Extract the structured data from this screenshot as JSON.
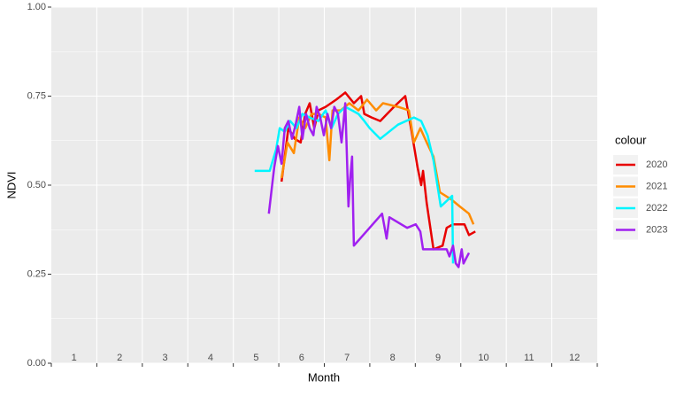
{
  "chart_data": {
    "type": "line",
    "x_label": "Month",
    "y_label": "NDVI",
    "legend_title": "colour",
    "xlim": [
      0.5,
      12.5
    ],
    "xticks": [
      1,
      2,
      3,
      4,
      5,
      6,
      7,
      8,
      9,
      10,
      11,
      12
    ],
    "ylim": [
      0,
      1
    ],
    "yticks": [
      {
        "value": 0,
        "label": "0.00"
      },
      {
        "value": 0.25,
        "label": "0.25"
      },
      {
        "value": 0.5,
        "label": "0.50"
      },
      {
        "value": 0.75,
        "label": "0.75"
      },
      {
        "value": 1,
        "label": "1.00"
      }
    ],
    "grid": true,
    "legend_position": "right",
    "series": [
      {
        "name": "2020",
        "color": "#e80000",
        "x": [
          5.56,
          5.63,
          5.71,
          5.85,
          5.98,
          6.08,
          6.18,
          6.28,
          6.37,
          6.53,
          6.76,
          6.96,
          7.15,
          7.31,
          7.38,
          7.54,
          7.73,
          8.03,
          8.28,
          8.42,
          8.55,
          8.63,
          8.67,
          8.75,
          8.9,
          9.1,
          9.19,
          9.33,
          9.58,
          9.68,
          9.82
        ],
        "values": [
          0.51,
          0.58,
          0.66,
          0.63,
          0.62,
          0.7,
          0.73,
          0.66,
          0.71,
          0.72,
          0.74,
          0.76,
          0.73,
          0.75,
          0.7,
          0.69,
          0.68,
          0.72,
          0.75,
          0.65,
          0.55,
          0.5,
          0.54,
          0.45,
          0.32,
          0.33,
          0.38,
          0.39,
          0.39,
          0.36,
          0.37
        ]
      },
      {
        "name": "2021",
        "color": "#ff8c00",
        "x": [
          5.56,
          5.69,
          5.83,
          5.95,
          6.08,
          6.22,
          6.37,
          6.53,
          6.61,
          6.68,
          6.86,
          7.05,
          7.25,
          7.44,
          7.64,
          7.79,
          8.12,
          8.36,
          8.47,
          8.61,
          8.75,
          8.9,
          9.04,
          9.29,
          9.48,
          9.68,
          9.78
        ],
        "values": [
          0.52,
          0.62,
          0.59,
          0.69,
          0.66,
          0.7,
          0.7,
          0.69,
          0.57,
          0.71,
          0.71,
          0.73,
          0.71,
          0.74,
          0.71,
          0.73,
          0.72,
          0.71,
          0.62,
          0.66,
          0.62,
          0.58,
          0.48,
          0.46,
          0.44,
          0.42,
          0.39
        ]
      },
      {
        "name": "2022",
        "color": "#00f5ff",
        "x": [
          4.97,
          5.3,
          5.44,
          5.52,
          5.63,
          5.75,
          5.89,
          6.02,
          6.18,
          6.37,
          6.53,
          6.66,
          6.8,
          6.96,
          7.11,
          7.25,
          7.38,
          7.5,
          7.73,
          8.12,
          8.47,
          8.63,
          8.77,
          8.9,
          9.06,
          9.31,
          9.33
        ],
        "values": [
          0.54,
          0.54,
          0.6,
          0.66,
          0.65,
          0.68,
          0.66,
          0.7,
          0.69,
          0.68,
          0.71,
          0.66,
          0.7,
          0.72,
          0.71,
          0.7,
          0.68,
          0.66,
          0.63,
          0.67,
          0.69,
          0.68,
          0.64,
          0.57,
          0.44,
          0.47,
          0.28
        ]
      },
      {
        "name": "2023",
        "color": "#a020f0",
        "x": [
          5.28,
          5.4,
          5.48,
          5.56,
          5.63,
          5.71,
          5.79,
          5.87,
          5.95,
          6.02,
          6.1,
          6.18,
          6.26,
          6.33,
          6.41,
          6.49,
          6.57,
          6.65,
          6.72,
          6.8,
          6.88,
          6.96,
          7.03,
          7.07,
          7.11,
          7.15,
          7.77,
          7.87,
          7.93,
          8.32,
          8.51,
          8.61,
          8.67,
          9.19,
          9.25,
          9.33,
          9.39,
          9.45,
          9.52,
          9.56,
          9.64,
          9.68
        ],
        "values": [
          0.42,
          0.55,
          0.61,
          0.56,
          0.66,
          0.68,
          0.63,
          0.67,
          0.72,
          0.63,
          0.7,
          0.66,
          0.64,
          0.72,
          0.69,
          0.64,
          0.7,
          0.66,
          0.72,
          0.7,
          0.62,
          0.73,
          0.44,
          0.52,
          0.58,
          0.33,
          0.42,
          0.35,
          0.41,
          0.38,
          0.39,
          0.37,
          0.32,
          0.32,
          0.3,
          0.33,
          0.28,
          0.27,
          0.32,
          0.28,
          0.3,
          0.31
        ]
      }
    ]
  }
}
